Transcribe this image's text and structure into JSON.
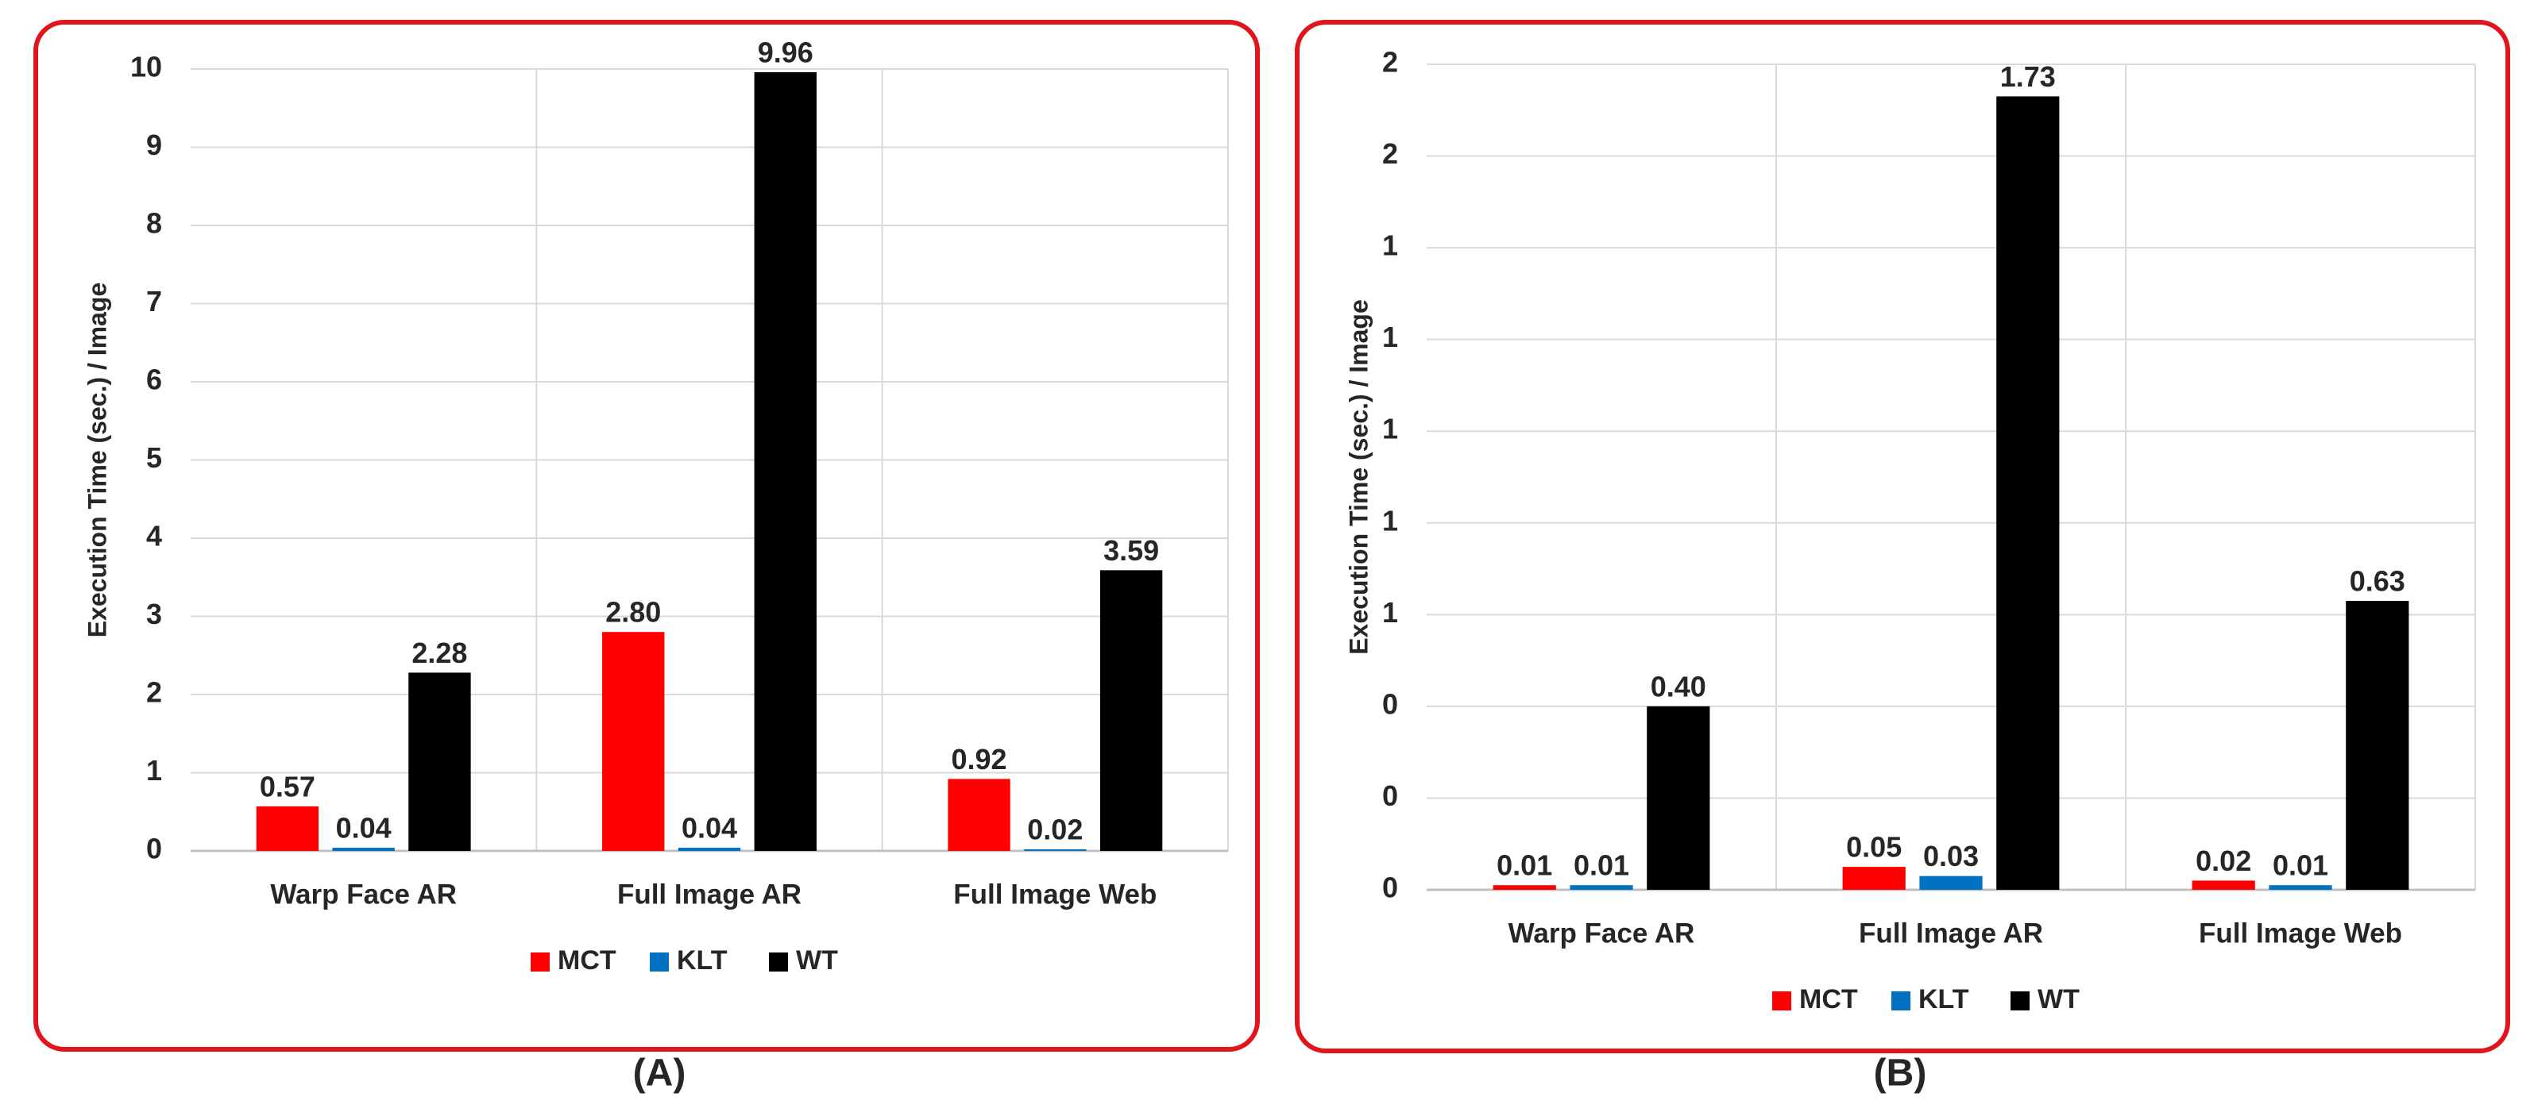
{
  "chart_data": [
    {
      "type": "bar",
      "caption": "(A)",
      "y_label": "Execution Time (sec.) / Image",
      "categories": [
        "Warp Face AR",
        "Full Image AR",
        "Full Image Web"
      ],
      "series": [
        {
          "name": "MCT",
          "color": "#ff0000",
          "values": [
            0.57,
            2.8,
            0.92
          ],
          "value_labels": [
            "0.57",
            "2.80",
            "0.92"
          ]
        },
        {
          "name": "KLT",
          "color": "#0070c0",
          "values": [
            0.04,
            0.04,
            0.02
          ],
          "value_labels": [
            "0.04",
            "0.04",
            "0.02"
          ]
        },
        {
          "name": "WT",
          "color": "#000000",
          "values": [
            2.28,
            9.96,
            3.59
          ],
          "value_labels": [
            "2.28",
            "9.96",
            "3.59"
          ]
        }
      ],
      "ylim": [
        0,
        10
      ],
      "yticks": [
        0,
        1,
        2,
        3,
        4,
        5,
        6,
        7,
        8,
        9,
        10
      ],
      "grid": true,
      "legend": "bottom"
    },
    {
      "type": "bar",
      "caption": "(B)",
      "y_label": "Execution Time (sec.) / Image",
      "categories": [
        "Warp Face AR",
        "Full Image AR",
        "Full Image Web"
      ],
      "series": [
        {
          "name": "MCT",
          "color": "#ff0000",
          "values": [
            0.01,
            0.05,
            0.02
          ],
          "value_labels": [
            "0.01",
            "0.05",
            "0.02"
          ]
        },
        {
          "name": "KLT",
          "color": "#0070c0",
          "values": [
            0.01,
            0.03,
            0.01
          ],
          "value_labels": [
            "0.01",
            "0.03",
            "0.01"
          ]
        },
        {
          "name": "WT",
          "color": "#000000",
          "values": [
            0.4,
            1.73,
            0.63
          ],
          "value_labels": [
            "0.40",
            "1.73",
            "0.63"
          ]
        }
      ],
      "ylim": [
        0,
        1.8
      ],
      "yticks": [
        {
          "value": 0,
          "label": "0"
        },
        {
          "value": 0.2,
          "label": "0"
        },
        {
          "value": 0.4,
          "label": "0"
        },
        {
          "value": 0.6,
          "label": "1"
        },
        {
          "value": 0.8,
          "label": "1"
        },
        {
          "value": 1.0,
          "label": "1"
        },
        {
          "value": 1.2,
          "label": "1"
        },
        {
          "value": 1.4,
          "label": "1"
        },
        {
          "value": 1.6,
          "label": "2"
        },
        {
          "value": 1.8,
          "label": "2"
        }
      ],
      "grid": true,
      "legend": "bottom"
    }
  ]
}
